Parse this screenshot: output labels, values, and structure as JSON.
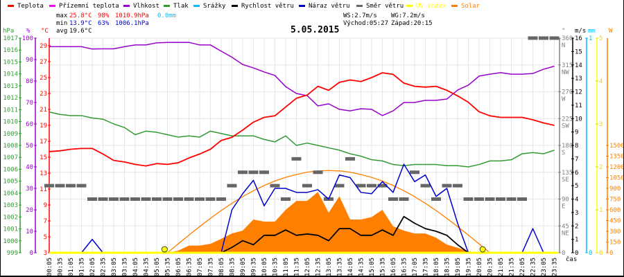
{
  "legend": [
    {
      "label": "Teplota",
      "color": "#ff0000"
    },
    {
      "label": "Přízemní teplota",
      "color": "#ff00ff"
    },
    {
      "label": "Vlhkost",
      "color": "#9900cc"
    },
    {
      "label": "Tlak",
      "color": "#339933"
    },
    {
      "label": "Srážky",
      "color": "#00bbff"
    },
    {
      "label": "Rychlost větru",
      "color": "#000000"
    },
    {
      "label": "Náraz větru",
      "color": "#0000cc"
    },
    {
      "label": "Směr větru",
      "color": "#666666"
    },
    {
      "label": "UV index",
      "color": "#ffff00"
    },
    {
      "label": "Solar",
      "color": "#ff8000"
    }
  ],
  "stats": {
    "max_label": "max",
    "max_temp": "25.8°C",
    "max_hum": "98%",
    "max_press": "1010.9hPa",
    "rain": "0.0mm",
    "min_label": "min",
    "min_temp": "13.9°C",
    "min_hum": "63%",
    "min_press": "1006.1hPa",
    "avg_label": "avg",
    "avg_temp": "19.6°C",
    "ws": "WS:2.7m/s",
    "wg": "WG:7.2m/s",
    "sunrise": "Východ:05:27",
    "sunset": "Západ:20:15"
  },
  "chart_data": {
    "type": "line",
    "title": "5.05.2015",
    "xlabel": "čas",
    "sunrise_time": "05:27",
    "sunset_time": "20:15",
    "x": [
      "00:05",
      "00:35",
      "01:05",
      "01:35",
      "02:05",
      "02:35",
      "03:05",
      "03:35",
      "04:05",
      "04:35",
      "05:05",
      "05:35",
      "06:05",
      "06:35",
      "07:05",
      "07:35",
      "08:05",
      "08:35",
      "09:05",
      "09:35",
      "10:05",
      "10:35",
      "11:05",
      "11:35",
      "12:05",
      "12:35",
      "13:05",
      "13:35",
      "14:05",
      "14:35",
      "15:05",
      "15:35",
      "16:05",
      "16:35",
      "17:05",
      "17:35",
      "18:05",
      "18:35",
      "19:05",
      "19:35",
      "20:05",
      "20:35",
      "21:05",
      "21:35",
      "22:05",
      "22:35",
      "23:05",
      "23:35"
    ],
    "axes": {
      "pressure": {
        "unit": "hPa",
        "range": [
          999,
          1017
        ],
        "ticks": [
          999,
          1000,
          1001,
          1002,
          1003,
          1004,
          1005,
          1006,
          1007,
          1008,
          1009,
          1010,
          1011,
          1012,
          1013,
          1014,
          1015,
          1016,
          1017
        ]
      },
      "humidity": {
        "unit": "%",
        "range": [
          0,
          100
        ],
        "ticks": [
          0,
          10,
          20,
          30,
          40,
          50,
          60,
          70,
          80,
          90,
          100
        ]
      },
      "temperature": {
        "unit": "°C",
        "range": [
          3,
          30
        ],
        "ticks": [
          3,
          5,
          7,
          9,
          11,
          13,
          15,
          17,
          19,
          21,
          23,
          25,
          27,
          29
        ]
      },
      "direction": {
        "unit": "°",
        "range": [
          0,
          360
        ],
        "ticks": [
          0,
          45,
          90,
          135,
          180,
          225,
          270,
          315,
          360
        ],
        "names": [
          "",
          "NE",
          "E",
          "SE",
          "S",
          "SW",
          "W",
          "NW",
          "N"
        ]
      },
      "wind": {
        "unit": "m/s",
        "range": [
          0,
          16
        ],
        "ticks": [
          0,
          1,
          2,
          3,
          4,
          5,
          6,
          7,
          8,
          9,
          10,
          11,
          12,
          13,
          14,
          15,
          16
        ]
      },
      "rain": {
        "unit": "mm",
        "range": [
          0,
          1
        ],
        "ticks": [
          0,
          1
        ]
      },
      "uv": {
        "unit": "",
        "range": [
          0,
          5
        ],
        "ticks": [
          0,
          1,
          2,
          3,
          4,
          5
        ]
      },
      "solar": {
        "unit": "W",
        "range": [
          0,
          3000
        ],
        "ticks": [
          0,
          150,
          300,
          450,
          600,
          750,
          900,
          1050,
          1200,
          1350,
          1500
        ]
      }
    },
    "series": [
      {
        "name": "Teplota",
        "axis": "temperature",
        "values": [
          15.7,
          15.8,
          16.0,
          16.1,
          16.1,
          15.4,
          14.6,
          14.4,
          14.1,
          13.9,
          14.2,
          14.1,
          14.3,
          14.9,
          15.4,
          16.0,
          17.1,
          17.5,
          18.4,
          19.4,
          20.0,
          20.2,
          21.3,
          22.4,
          22.8,
          23.9,
          23.4,
          24.4,
          24.7,
          24.5,
          25.0,
          25.6,
          25.4,
          24.3,
          23.9,
          23.8,
          23.9,
          23.4,
          22.7,
          21.9,
          20.7,
          20.2,
          20.0,
          20.0,
          20.0,
          19.7,
          19.3,
          19.0
        ]
      },
      {
        "name": "Vlhkost",
        "axis": "humidity",
        "values": [
          96,
          96,
          96,
          96,
          94.9,
          95,
          95,
          96,
          96.8,
          96.8,
          97.8,
          98,
          98,
          98,
          96.8,
          96.8,
          93.9,
          91.1,
          87.7,
          86.1,
          84.2,
          82.6,
          77.4,
          74.2,
          73.2,
          68.4,
          69.4,
          66.8,
          66.1,
          67.1,
          66.8,
          63.9,
          66.1,
          70,
          70,
          71,
          71,
          71.6,
          75.8,
          78.1,
          82.3,
          83.2,
          83.9,
          83.2,
          83.2,
          83.5,
          85.5,
          86.9
        ]
      },
      {
        "name": "Tlak",
        "axis": "pressure",
        "values": [
          1010.8,
          1010.6,
          1010.5,
          1010.5,
          1010.3,
          1010.2,
          1009.8,
          1009.5,
          1008.9,
          1009.2,
          1009.1,
          1008.9,
          1008.7,
          1008.8,
          1008.7,
          1009.2,
          1009.0,
          1008.8,
          1008.8,
          1008.8,
          1008.5,
          1008.3,
          1008.8,
          1008.0,
          1008.2,
          1008.0,
          1007.8,
          1007.6,
          1007.3,
          1007.1,
          1006.8,
          1006.7,
          1006.4,
          1006.3,
          1006.4,
          1006.4,
          1006.4,
          1006.3,
          1006.3,
          1006.2,
          1006.4,
          1006.7,
          1006.7,
          1006.8,
          1007.3,
          1007.4,
          1007.3,
          1007.6
        ]
      },
      {
        "name": "Rychlost větru",
        "axis": "wind",
        "values": [
          0,
          0,
          0,
          0,
          0,
          0,
          0,
          0,
          0,
          0,
          0,
          0,
          0,
          0,
          0,
          0,
          0,
          0.4,
          0.9,
          0.6,
          1.3,
          1.3,
          1.7,
          1.3,
          1.4,
          1.3,
          0.9,
          1.8,
          1.8,
          1.3,
          1.3,
          1.7,
          1.3,
          2.7,
          2.2,
          1.8,
          1.6,
          1.3,
          0.6,
          0,
          0,
          0,
          0,
          0,
          0,
          0,
          0,
          0
        ]
      },
      {
        "name": "Náraz větru",
        "axis": "wind",
        "values": [
          0,
          0,
          0,
          0,
          1.0,
          0,
          0,
          0,
          0,
          0,
          0,
          0,
          0,
          0,
          0,
          0,
          0,
          3.2,
          4.4,
          5.4,
          3.5,
          4.8,
          4.8,
          4.5,
          4.5,
          4.7,
          4.0,
          5.8,
          5.6,
          4.5,
          4.4,
          5.3,
          4.5,
          6.6,
          5.3,
          5.8,
          4.2,
          4.8,
          2.2,
          0,
          0,
          0,
          0,
          0,
          0,
          1.8,
          0,
          0
        ]
      },
      {
        "name": "Směr větru",
        "axis": "direction",
        "values": [
          112.5,
          112.5,
          112.5,
          112.5,
          90,
          90,
          90,
          90,
          90,
          90,
          90,
          90,
          90,
          90,
          90,
          90,
          90,
          112.5,
          135,
          135,
          135,
          112.5,
          90,
          157.5,
          112.5,
          135,
          90,
          112.5,
          157.5,
          112.5,
          112.5,
          112.5,
          90,
          90,
          135,
          112.5,
          90,
          112.5,
          112.5,
          90,
          90,
          90,
          90,
          90,
          90,
          360,
          360,
          360
        ]
      },
      {
        "name": "Solar",
        "axis": "solar",
        "values": [
          0,
          0,
          0,
          0,
          0,
          0,
          0,
          0,
          0,
          0,
          0,
          0,
          30,
          100,
          100,
          125,
          195,
          270,
          310,
          465,
          435,
          435,
          600,
          725,
          725,
          850,
          560,
          790,
          465,
          465,
          500,
          600,
          370,
          310,
          270,
          270,
          210,
          115,
          70,
          20,
          0,
          0,
          0,
          0,
          0,
          0,
          0,
          0
        ]
      },
      {
        "name": "Solar max",
        "axis": "solar",
        "values": [
          0,
          0,
          0,
          0,
          0,
          0,
          0,
          0,
          0,
          0,
          0,
          0,
          124,
          247,
          366,
          481,
          590,
          691,
          784,
          867,
          940,
          1003,
          1054,
          1094,
          1126,
          1144,
          1149,
          1144,
          1126,
          1094,
          1054,
          1003,
          940,
          867,
          784,
          691,
          590,
          481,
          366,
          247,
          124,
          0,
          0,
          0,
          0,
          0,
          0,
          0
        ]
      },
      {
        "name": "Srážky",
        "axis": "rain",
        "values": [
          0,
          0,
          0,
          0,
          0,
          0,
          0,
          0,
          0,
          0,
          0,
          0,
          0,
          0,
          0,
          0,
          0,
          0,
          0,
          0,
          0,
          0,
          0,
          0,
          0,
          0,
          0,
          0,
          0,
          0,
          0,
          0,
          0,
          0,
          0,
          0,
          0,
          0,
          0,
          0,
          0,
          0,
          0,
          0,
          0,
          0,
          0,
          0
        ]
      },
      {
        "name": "UV index",
        "axis": "uv",
        "values": [
          0,
          0,
          0,
          0,
          0,
          0,
          0,
          0,
          0,
          0,
          0,
          0,
          0,
          0,
          0,
          0,
          0,
          0,
          0,
          0,
          0,
          0,
          0,
          0,
          0,
          0,
          0,
          0,
          0,
          0,
          0,
          0,
          0,
          0,
          0,
          0,
          0,
          0,
          0,
          0,
          0,
          0,
          0,
          0,
          0,
          0,
          0,
          0
        ]
      }
    ],
    "grid": true,
    "legend_position": "top"
  }
}
